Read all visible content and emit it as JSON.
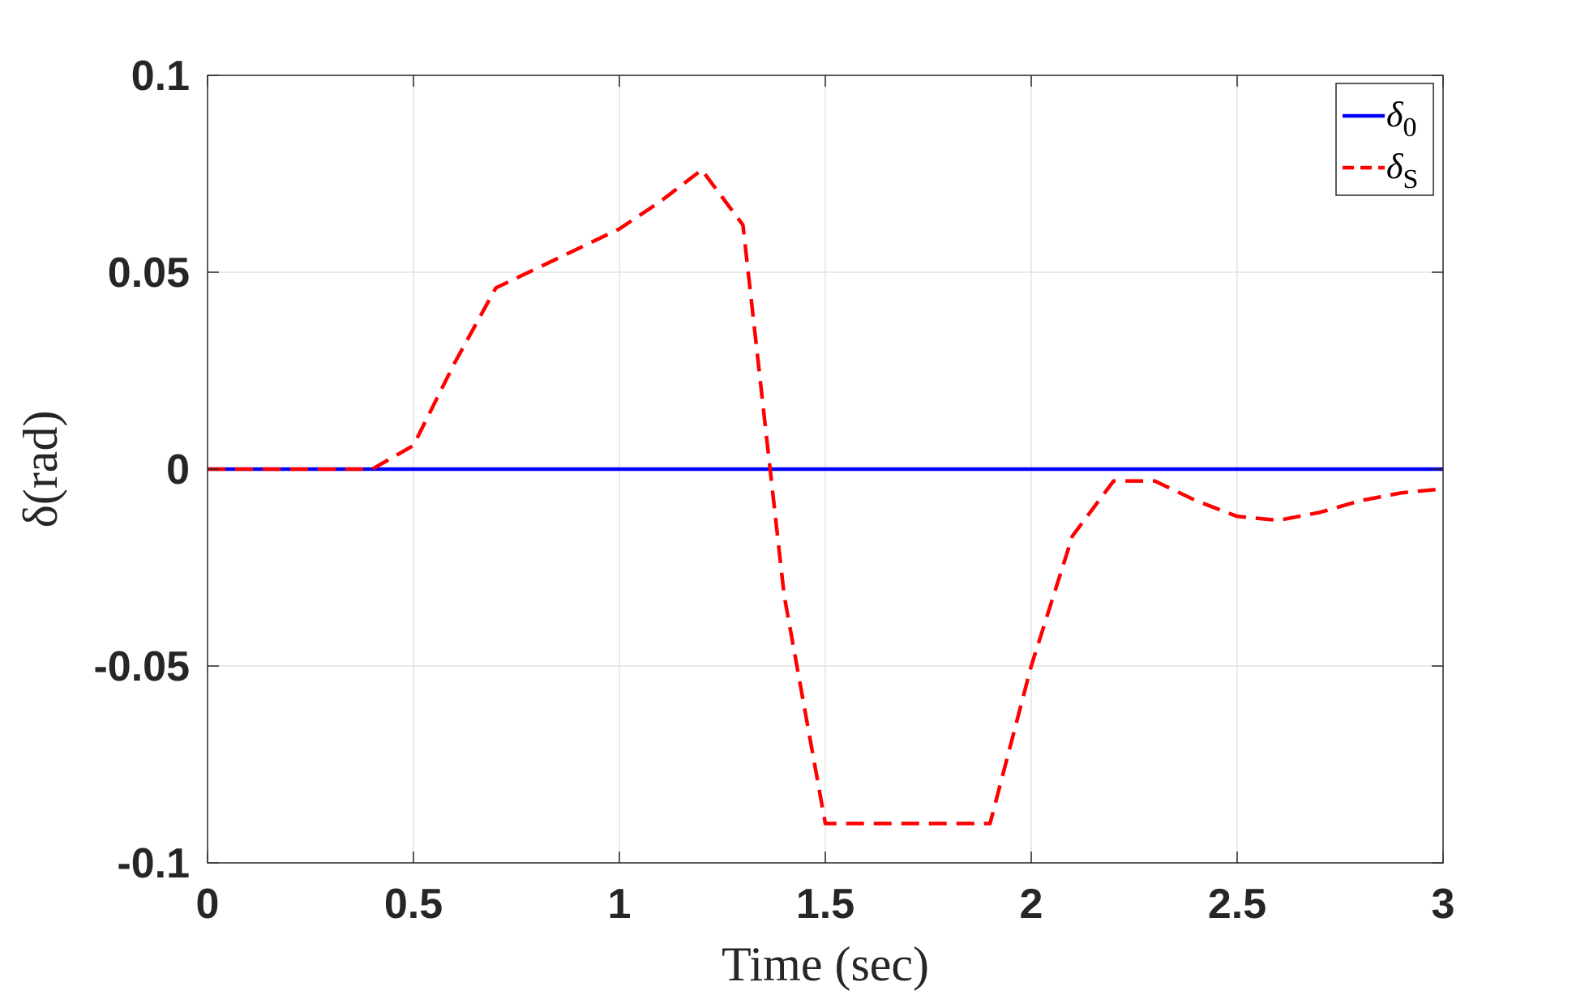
{
  "chart_data": {
    "type": "line",
    "xlabel": "Time (sec)",
    "ylabel": "δ(rad)",
    "xlim": [
      0,
      3
    ],
    "ylim": [
      -0.1,
      0.1
    ],
    "xticks": [
      0,
      0.5,
      1,
      1.5,
      2,
      2.5,
      3
    ],
    "xtick_labels": [
      "0",
      "0.5",
      "1",
      "1.5",
      "2",
      "2.5",
      "3"
    ],
    "yticks": [
      -0.1,
      -0.05,
      0,
      0.05,
      0.1
    ],
    "ytick_labels": [
      "-0.1",
      "-0.05",
      "0",
      "0.05",
      "0.1"
    ],
    "grid": true,
    "legend_position": "top-right",
    "series": [
      {
        "name": "δ0",
        "legend_main": "δ",
        "legend_sub": "0",
        "color": "#0000ff",
        "style": "solid",
        "x": [
          0,
          3
        ],
        "y": [
          0,
          0
        ]
      },
      {
        "name": "δS",
        "legend_main": "δ",
        "legend_sub": "S",
        "color": "#ff0000",
        "style": "dashed",
        "x": [
          0,
          0.4,
          0.5,
          0.6,
          0.7,
          0.8,
          0.9,
          1.0,
          1.1,
          1.2,
          1.3,
          1.4,
          1.5,
          1.6,
          1.7,
          1.8,
          1.9,
          2.0,
          2.1,
          2.2,
          2.3,
          2.4,
          2.5,
          2.6,
          2.7,
          2.8,
          2.9,
          3.0
        ],
        "y": [
          0,
          0,
          0.006,
          0.027,
          0.046,
          0.051,
          0.056,
          0.061,
          0.068,
          0.076,
          0.062,
          -0.032,
          -0.09,
          -0.09,
          -0.09,
          -0.09,
          -0.09,
          -0.05,
          -0.017,
          -0.003,
          -0.003,
          -0.008,
          -0.012,
          -0.013,
          -0.011,
          -0.008,
          -0.006,
          -0.005
        ]
      }
    ]
  }
}
